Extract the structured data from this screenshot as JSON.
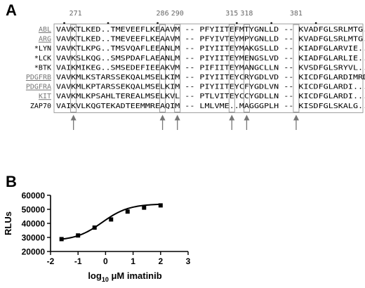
{
  "panels": {
    "a_label": "A",
    "b_label": "B"
  },
  "alignment": {
    "positions": [
      "271",
      "286",
      "290",
      "315",
      "318",
      "381"
    ],
    "rows": [
      {
        "name": "ABL",
        "underlined": true,
        "sequence": "VAVKTLKED..TMEVEEFLKEAAVM -- PFYIITEFMTYGNLLD -- KVADFGLSRLMTG."
      },
      {
        "name": "ARG",
        "underlined": true,
        "sequence": "VAVKTLKED..TMEVEEFLKEAAVM -- PFYIVTEYMPYGNLLD -- KVADFGLSRLMTG."
      },
      {
        "name": "*LYN",
        "underlined": false,
        "sequence": "VAVKTLKPG..TMSVQAFLEEANLM -- PIYIITEYMAKGSLLD -- KIADFGLARVIE.."
      },
      {
        "name": "*LCK",
        "underlined": false,
        "sequence": "VAVKSLKQG..SMSPDAFLAEANLM -- PIYIITEYMENGSLVD -- KIADFGLARLIE.."
      },
      {
        "name": "*BTK",
        "underlined": false,
        "sequence": "VAIKMIKEG..SMSEDEFIEEAKVM -- PIFIITEYMANGCLLN -- KVSDFGLSRYVL.."
      },
      {
        "name": "PDGFRB",
        "underlined": true,
        "sequence": "VAVKMLKSTARSSEKQALMSELKIM -- PIYIITEYCRYGDLVD -- KICDFGLARDIMRD"
      },
      {
        "name": "PDGFRA",
        "underlined": true,
        "sequence": "VAVKMLKPTARSSEKQALMSELKIM -- PIYIITEYCFYGDLVN -- KICDFGLARDI..."
      },
      {
        "name": "KIT",
        "underlined": true,
        "sequence": "VAVKMLKPSAHLTEREALMSELKVL -- PTLVITEYCCYGDLLN -- KICDFGLARDI..."
      },
      {
        "name": "ZAP70",
        "underlined": false,
        "sequence": "VAIKVLKQGTEKADTEEMMREAQIM -- LMLVME..MAGGGPLH -- KISDFGLSKALG.."
      }
    ]
  },
  "chart_data": {
    "type": "line",
    "title": "",
    "xlabel": "log10 μM imatinib",
    "xlabel_parts": {
      "pre": "log",
      "sub": "10",
      "post": " μM imatinib"
    },
    "ylabel": "RLUs",
    "xlim": [
      -2,
      3
    ],
    "ylim": [
      20000,
      60000
    ],
    "xticks": [
      "-2",
      "-1",
      "0",
      "1",
      "2",
      "3"
    ],
    "yticks": [
      "20000",
      "30000",
      "40000",
      "50000",
      "60000"
    ],
    "points": [
      {
        "x": -1.6,
        "y": 28800
      },
      {
        "x": -1.0,
        "y": 31400
      },
      {
        "x": -0.4,
        "y": 37000
      },
      {
        "x": 0.2,
        "y": 42800
      },
      {
        "x": 0.8,
        "y": 48400
      },
      {
        "x": 1.4,
        "y": 51200
      },
      {
        "x": 2.0,
        "y": 52800
      }
    ],
    "fit": {
      "bottom": 27600,
      "top": 53900,
      "logEC50": -0.12,
      "hill": 0.9
    },
    "grid": false,
    "legend": "none"
  }
}
